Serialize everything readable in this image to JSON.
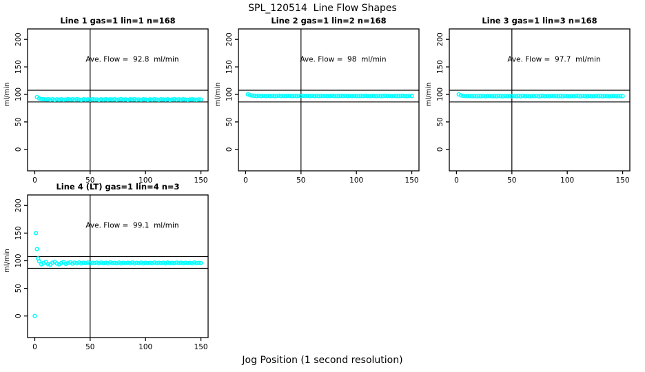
{
  "page": {
    "title": "SPL_120514  Line Flow Shapes",
    "xlabel": "Jog Position (1 second resolution)",
    "background": "#FFFFFF"
  },
  "style": {
    "marker_color": "#00FFFF",
    "axis_color": "#000000",
    "text_color": "#000000"
  },
  "chart_data": [
    {
      "type": "scatter",
      "title": "Line 1 gas=1 lin=1 n=168",
      "annotation": "Ave. Flow =  92.8  ml/min",
      "ave_flow_ml_min": 92.8,
      "ylabel": "ml/min",
      "xlim": [
        0,
        150
      ],
      "ylim": [
        0,
        200
      ],
      "x_range": [
        -6.5,
        156.5
      ],
      "y_range": [
        -39,
        219
      ],
      "xticks": [
        0,
        50,
        100,
        150
      ],
      "yticks": [
        0,
        50,
        100,
        150,
        200
      ],
      "vline_x": 50,
      "hlines_y": [
        107.5,
        86.3
      ],
      "series": [
        {
          "name": "flow",
          "x_start": 2,
          "x_step": 2,
          "y": [
            95.0,
            92.6,
            91.6,
            91.2,
            90.8,
            91.3,
            90.4,
            91.1,
            90.2,
            90.9,
            90.5,
            91.2,
            90.3,
            90.8,
            91.4,
            90.6,
            91.0,
            90.4,
            91.2,
            90.7,
            90.2,
            91.1,
            90.5,
            90.9,
            90.3,
            91.3,
            90.6,
            90.8,
            90.2,
            91.0,
            90.5,
            91.2,
            90.4,
            90.9,
            90.6,
            91.1,
            90.3,
            90.8,
            91.3,
            90.5,
            90.9,
            90.2,
            91.0,
            90.6,
            91.2,
            90.4,
            90.8,
            90.3,
            91.1,
            90.7,
            90.2,
            90.9,
            90.5,
            91.2,
            90.6,
            90.3,
            91.0,
            90.8,
            90.4,
            91.1,
            90.2,
            90.7,
            91.3,
            90.5,
            90.9,
            90.4,
            91.0,
            90.6,
            90.2,
            90.8,
            91.1,
            90.5,
            90.3,
            90.9,
            90.6
          ]
        }
      ],
      "extra_points": []
    },
    {
      "type": "scatter",
      "title": "Line 2 gas=1 lin=2 n=168",
      "annotation": "Ave. Flow =  98  ml/min",
      "ave_flow_ml_min": 98,
      "ylabel": "ml/min",
      "xlim": [
        0,
        150
      ],
      "ylim": [
        0,
        200
      ],
      "x_range": [
        -6.5,
        156.5
      ],
      "y_range": [
        -39,
        219
      ],
      "xticks": [
        0,
        50,
        100,
        150
      ],
      "yticks": [
        0,
        50,
        100,
        150,
        200
      ],
      "vline_x": 50,
      "hlines_y": [
        107.5,
        86.3
      ],
      "series": [
        {
          "name": "flow",
          "x_start": 2,
          "x_step": 2,
          "y": [
            100.2,
            98.5,
            97.8,
            97.5,
            97.2,
            97.6,
            96.9,
            97.4,
            96.8,
            97.3,
            97.0,
            97.5,
            96.8,
            97.2,
            97.6,
            97.0,
            97.4,
            96.9,
            97.5,
            97.1,
            96.8,
            97.4,
            97.0,
            97.3,
            96.9,
            97.6,
            97.1,
            97.3,
            96.8,
            97.4,
            97.0,
            97.5,
            96.9,
            97.3,
            97.1,
            97.4,
            96.8,
            97.2,
            97.6,
            97.0,
            97.3,
            96.9,
            97.4,
            97.1,
            97.5,
            96.9,
            97.2,
            96.8,
            97.4,
            97.1,
            96.9,
            97.3,
            97.0,
            97.5,
            97.1,
            96.8,
            97.4,
            97.2,
            96.9,
            97.4,
            96.8,
            97.1,
            97.6,
            97.0,
            97.3,
            96.9,
            97.4,
            97.1,
            96.8,
            97.2,
            97.4,
            97.0,
            96.9,
            97.3,
            97.1
          ]
        }
      ],
      "extra_points": []
    },
    {
      "type": "scatter",
      "title": "Line 3 gas=1 lin=3 n=168",
      "annotation": "Ave. Flow =  97.7  ml/min",
      "ave_flow_ml_min": 97.7,
      "ylabel": "ml/min",
      "xlim": [
        0,
        150
      ],
      "ylim": [
        0,
        200
      ],
      "x_range": [
        -6.5,
        156.5
      ],
      "y_range": [
        -39,
        219
      ],
      "xticks": [
        0,
        50,
        100,
        150
      ],
      "yticks": [
        0,
        50,
        100,
        150,
        200
      ],
      "vline_x": 50,
      "hlines_y": [
        107.5,
        86.3
      ],
      "series": [
        {
          "name": "flow",
          "x_start": 2,
          "x_step": 2,
          "y": [
            100.0,
            98.2,
            97.5,
            97.2,
            96.9,
            97.3,
            96.6,
            97.1,
            96.5,
            97.0,
            96.7,
            97.2,
            96.5,
            96.9,
            97.3,
            96.7,
            97.1,
            96.6,
            97.2,
            96.8,
            96.5,
            97.1,
            96.7,
            97.0,
            96.6,
            97.3,
            96.8,
            97.0,
            96.5,
            97.4,
            96.7,
            97.2,
            96.6,
            97.0,
            96.8,
            97.4,
            96.5,
            96.9,
            97.3,
            96.7,
            97.0,
            96.6,
            97.4,
            96.8,
            97.2,
            96.6,
            96.9,
            96.5,
            97.3,
            96.8,
            96.6,
            97.0,
            96.7,
            97.4,
            96.8,
            96.5,
            97.2,
            96.9,
            96.6,
            97.3,
            96.5,
            96.8,
            97.4,
            96.7,
            97.0,
            96.6,
            97.2,
            96.8,
            96.5,
            96.9,
            97.3,
            96.7,
            96.6,
            97.0,
            96.8
          ]
        }
      ],
      "extra_points": []
    },
    {
      "type": "scatter",
      "title": "Line 4 (LT) gas=1 lin=4 n=3",
      "annotation": "Ave. Flow =  99.1  ml/min",
      "ave_flow_ml_min": 99.1,
      "ylabel": "ml/min",
      "xlim": [
        0,
        150
      ],
      "ylim": [
        0,
        200
      ],
      "x_range": [
        -6.5,
        156.5
      ],
      "y_range": [
        -39,
        219
      ],
      "xticks": [
        0,
        50,
        100,
        150
      ],
      "yticks": [
        0,
        50,
        100,
        150,
        200
      ],
      "vline_x": 50,
      "hlines_y": [
        107.5,
        86.3
      ],
      "series": [
        {
          "name": "flow",
          "x_start": 4,
          "x_step": 2,
          "y": [
            99.0,
            93.5,
            96.0,
            98.0,
            94.0,
            93.0,
            96.5,
            98.0,
            95.0,
            93.5,
            96.0,
            97.5,
            94.5,
            96.0,
            97.0,
            95.0,
            96.5,
            95.5,
            96.8,
            95.2,
            96.4,
            95.6,
            96.9,
            95.3,
            96.2,
            95.8,
            96.5,
            95.4,
            96.7,
            95.6,
            96.3,
            95.2,
            96.8,
            95.7,
            96.1,
            95.4,
            96.6,
            95.3,
            96.2,
            95.8,
            96.4,
            95.5,
            96.7,
            95.2,
            96.0,
            95.6,
            96.5,
            95.3,
            96.3,
            95.7,
            96.1,
            95.4,
            96.6,
            95.5,
            96.2,
            95.8,
            96.4,
            95.3,
            96.7,
            95.6,
            96.0,
            95.4,
            96.5,
            95.7,
            96.2,
            95.5,
            96.3,
            95.8,
            96.1,
            95.4,
            96.6,
            95.6,
            96.0,
            95.8
          ]
        }
      ],
      "extra_points": [
        [
          0,
          0
        ],
        [
          1,
          150
        ],
        [
          2,
          121
        ],
        [
          3,
          104
        ]
      ]
    }
  ]
}
